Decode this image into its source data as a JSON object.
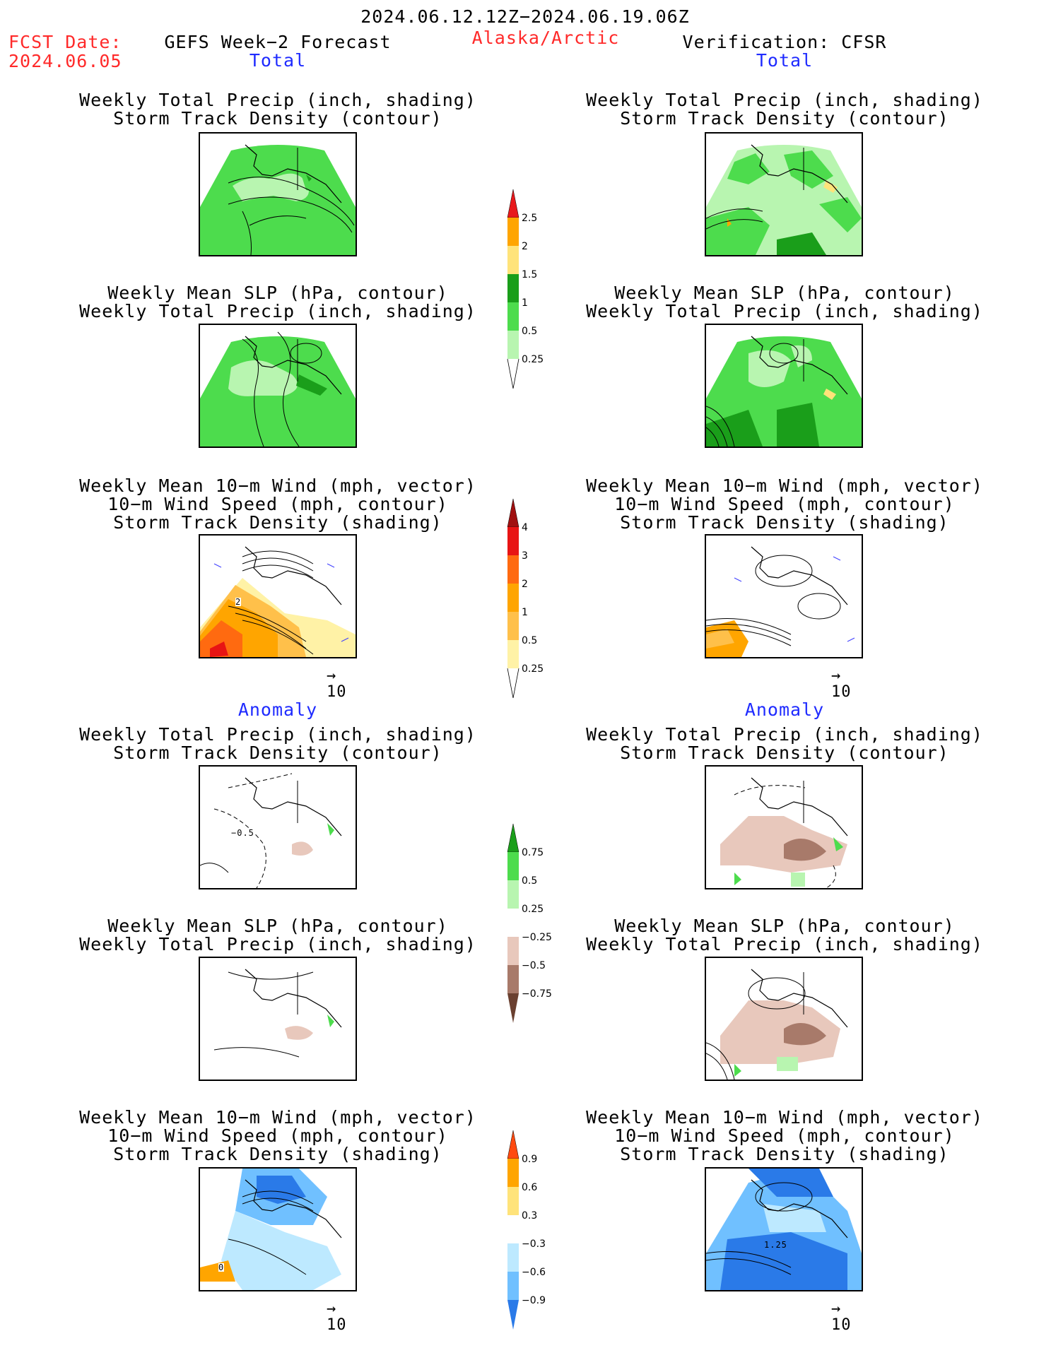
{
  "header": {
    "date_range": "2024.06.12.12Z−2024.06.19.06Z",
    "region": "Alaska/Arctic",
    "fcst_label": "FCST Date:",
    "fcst_date": "2024.06.05",
    "left_title": "GEFS Week−2 Forecast",
    "right_title": "Verification: CFSR"
  },
  "sections": {
    "total": "Total",
    "anomaly": "Anomaly"
  },
  "panel_titles": {
    "precip_storm": [
      "Weekly Total Precip (inch, shading)",
      "Storm Track Density (contour)"
    ],
    "slp_precip": [
      "Weekly Mean SLP (hPa, contour)",
      "Weekly Total Precip (inch, shading)"
    ],
    "wind_storm": [
      "Weekly Mean 10−m Wind (mph, vector)",
      "10−m Wind Speed (mph, contour)",
      "Storm Track Density (shading)"
    ]
  },
  "vector_scale": "10",
  "colorbars": {
    "precip_total": {
      "labels": [
        "2.5",
        "2",
        "1.5",
        "1",
        "0.5",
        "0.25"
      ],
      "colors": [
        "#e8191c",
        "#ffa500",
        "#ffe37a",
        "#1a9e1a",
        "#4ddc4d",
        "#b8f5b0"
      ]
    },
    "storm_total": {
      "labels": [
        "4",
        "3",
        "2",
        "1",
        "0.5",
        "0.25"
      ],
      "colors": [
        "#a01010",
        "#e81414",
        "#ff6a10",
        "#ffa500",
        "#ffc04a",
        "#fff2a6"
      ]
    },
    "precip_anom": {
      "labels": [
        "0.75",
        "0.5",
        "0.25",
        "−0.25",
        "−0.5",
        "−0.75"
      ],
      "colors": [
        "#1a9e1a",
        "#4ddc4d",
        "#b8f5b0",
        "#e8c8bc",
        "#a87a6a",
        "#6a4030"
      ]
    },
    "storm_anom": {
      "labels": [
        "0.9",
        "0.6",
        "0.3",
        "−0.3",
        "−0.6",
        "−0.9"
      ],
      "colors": [
        "#ff4a10",
        "#ffa500",
        "#ffe37a",
        "#bde9ff",
        "#70c0ff",
        "#2a7ae8"
      ]
    }
  },
  "panel_labels": {
    "fcst_wind_total": "2",
    "fcst_precip_anom": "−0.5",
    "fcst_wind_anom": "0",
    "verif_wind_anom": "1.25"
  }
}
